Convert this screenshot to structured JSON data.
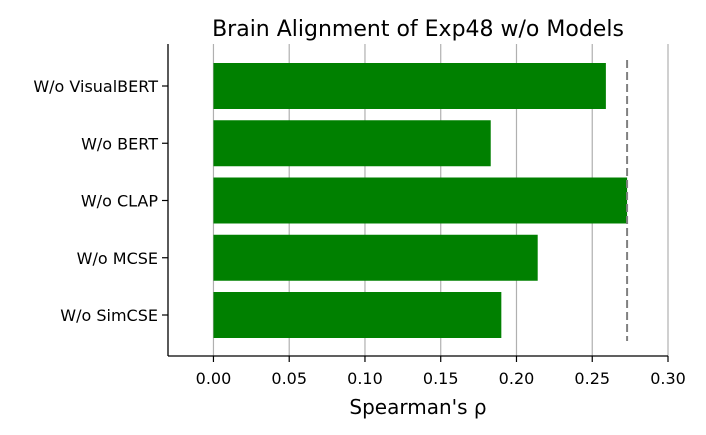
{
  "chart_data": {
    "type": "bar",
    "orientation": "horizontal",
    "title": "Brain Alignment of Exp48 w/o Models",
    "xlabel": "Spearman's ρ",
    "ylabel": "",
    "categories": [
      "W/o VisualBERT",
      "W/o BERT",
      "W/o CLAP",
      "W/o MCSE",
      "W/o SimCSE"
    ],
    "values": [
      0.259,
      0.183,
      0.273,
      0.214,
      0.19
    ],
    "xlim": [
      -0.03,
      0.3
    ],
    "xticks": [
      "0.00",
      "0.05",
      "0.10",
      "0.15",
      "0.20",
      "0.25",
      "0.30"
    ],
    "xtick_values": [
      0.0,
      0.05,
      0.1,
      0.15,
      0.2,
      0.25,
      0.3
    ],
    "reference_line": 0.273,
    "grid": "vertical",
    "bar_color": "#008000",
    "grid_color": "#b0b0b0",
    "reference_color": "#808080"
  }
}
